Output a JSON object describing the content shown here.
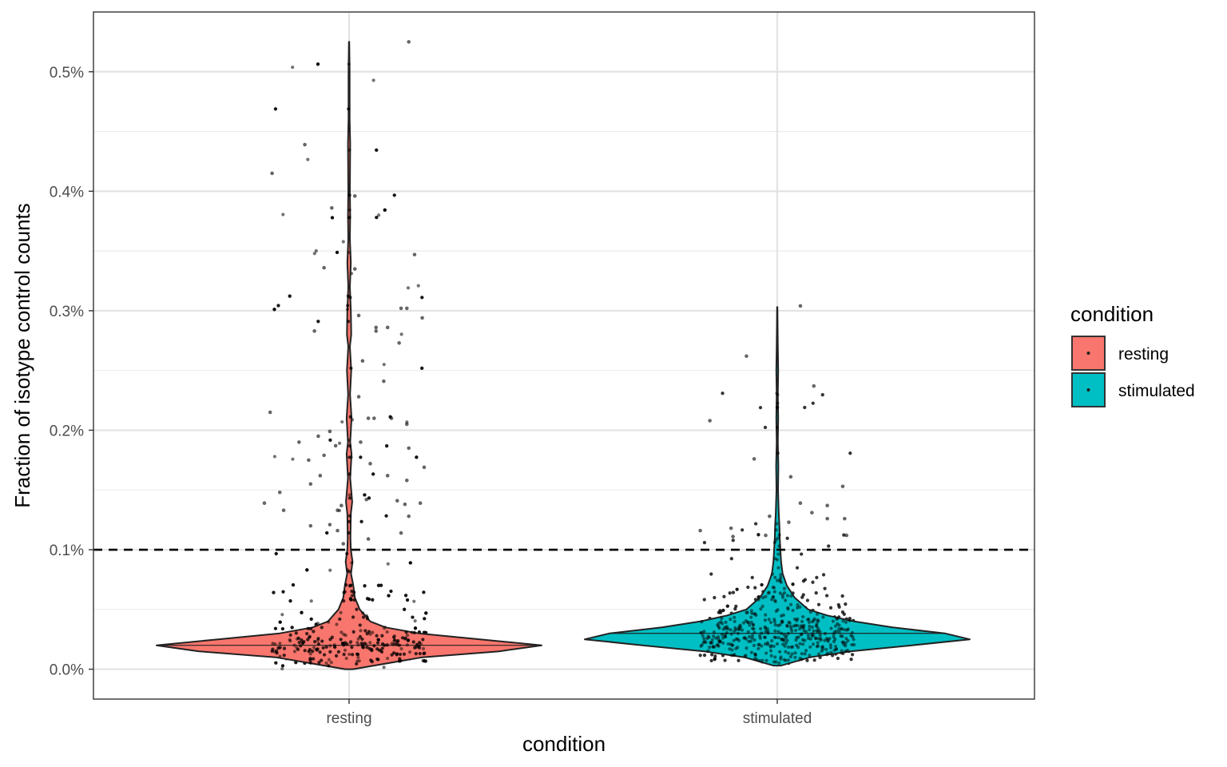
{
  "chart_data": {
    "type": "violin",
    "title": "",
    "xlabel": "condition",
    "ylabel": "Fraction of isotype control counts",
    "categories": [
      "resting",
      "stimulated"
    ],
    "ylim": [
      -0.00025,
      0.0055
    ],
    "yticks": [
      {
        "value": 0.0,
        "label": "0.0%"
      },
      {
        "value": 0.001,
        "label": "0.1%"
      },
      {
        "value": 0.002,
        "label": "0.2%"
      },
      {
        "value": 0.003,
        "label": "0.3%"
      },
      {
        "value": 0.004,
        "label": "0.4%"
      },
      {
        "value": 0.005,
        "label": "0.5%"
      }
    ],
    "y_minor_gridlines": [
      0.0005,
      0.0015,
      0.0025,
      0.0035,
      0.0045
    ],
    "reference_line": {
      "value": 0.001,
      "style": "dashed",
      "color": "#000000"
    },
    "grid": true,
    "theme": "bw",
    "legend": {
      "title": "condition",
      "position": "right",
      "entries": [
        {
          "label": "resting",
          "color": "#F8766D"
        },
        {
          "label": "stimulated",
          "color": "#00BFC4"
        }
      ]
    },
    "series": [
      {
        "name": "resting",
        "color": "#F8766D",
        "n_points": 900,
        "median": 0.0002,
        "min": 0.0,
        "max": 0.00525,
        "violin_profile": [
          [
            0.0,
            0.02
          ],
          [
            0.0001,
            0.38
          ],
          [
            0.00015,
            0.78
          ],
          [
            0.0002,
            1.0
          ],
          [
            0.00025,
            0.68
          ],
          [
            0.0003,
            0.36
          ],
          [
            0.00035,
            0.19
          ],
          [
            0.0004,
            0.11
          ],
          [
            0.0005,
            0.055
          ],
          [
            0.0006,
            0.03
          ],
          [
            0.0007,
            0.022
          ],
          [
            0.0008,
            0.01
          ],
          [
            0.0009,
            0.018
          ],
          [
            0.001,
            0.009
          ],
          [
            0.0011,
            0.007
          ],
          [
            0.0013,
            0.009
          ],
          [
            0.0014,
            0.016
          ],
          [
            0.0016,
            0.006
          ],
          [
            0.0018,
            0.013
          ],
          [
            0.0019,
            0.006
          ],
          [
            0.0021,
            0.013
          ],
          [
            0.0023,
            0.005
          ],
          [
            0.0025,
            0.011
          ],
          [
            0.0027,
            0.004
          ],
          [
            0.0028,
            0.011
          ],
          [
            0.003,
            0.009
          ],
          [
            0.0032,
            0.004
          ],
          [
            0.0034,
            0.009
          ],
          [
            0.0036,
            0.004
          ],
          [
            0.0038,
            0.006
          ],
          [
            0.004,
            0.004
          ],
          [
            0.0042,
            0.005
          ],
          [
            0.0044,
            0.006
          ],
          [
            0.0046,
            0.003
          ],
          [
            0.005,
            0.003
          ],
          [
            0.00525,
            0.001
          ]
        ],
        "outliers": [
          {
            "x": -0.4,
            "y": 0.00415
          },
          {
            "x": -0.23,
            "y": 0.00439
          },
          {
            "x": -0.09,
            "y": 0.00386
          },
          {
            "x": -0.13,
            "y": 0.00336
          },
          {
            "x": -0.18,
            "y": 0.00283
          },
          {
            "x": 0.03,
            "y": 0.00396
          },
          {
            "x": 0.03,
            "y": 0.00335
          },
          {
            "x": 0.05,
            "y": 0.00296
          },
          {
            "x": 0.31,
            "y": 0.00525
          },
          {
            "x": 0.34,
            "y": 0.00347
          },
          {
            "x": 0.38,
            "y": 0.00294
          },
          {
            "x": 0.27,
            "y": 0.00302
          },
          {
            "x": 0.3,
            "y": 0.00302
          },
          {
            "x": 0.26,
            "y": 0.00273
          },
          {
            "x": 0.2,
            "y": 0.00286
          },
          {
            "x": 0.14,
            "y": 0.00286
          },
          {
            "x": 0.14,
            "y": 0.00283
          },
          {
            "x": 0.07,
            "y": 0.00258
          },
          {
            "x": 0.18,
            "y": 0.00241
          },
          {
            "x": 0.05,
            "y": 0.00228
          },
          {
            "x": -0.41,
            "y": 0.00215
          },
          {
            "x": -0.26,
            "y": 0.0019
          },
          {
            "x": -0.16,
            "y": 0.00195
          },
          {
            "x": -0.1,
            "y": 0.00199
          },
          {
            "x": -0.07,
            "y": 0.00187
          },
          {
            "x": 0.1,
            "y": 0.0021
          },
          {
            "x": 0.13,
            "y": 0.0021
          },
          {
            "x": 0.22,
            "y": 0.0021
          },
          {
            "x": 0.3,
            "y": 0.00205
          },
          {
            "x": 0.06,
            "y": 0.0019
          },
          {
            "x": 0.31,
            "y": 0.00185
          },
          {
            "x": 0.39,
            "y": 0.00169
          },
          {
            "x": 0.3,
            "y": 0.00158
          },
          {
            "x": 0.2,
            "y": 0.00162
          },
          {
            "x": -0.21,
            "y": 0.00175
          },
          {
            "x": -0.13,
            "y": 0.00179
          },
          {
            "x": -0.15,
            "y": 0.00162
          },
          {
            "x": -0.2,
            "y": 0.00155
          },
          {
            "x": 0.11,
            "y": 0.00172
          },
          {
            "x": 0.37,
            "y": 0.00139
          },
          {
            "x": 0.25,
            "y": 0.00141
          },
          {
            "x": 0.29,
            "y": 0.00138
          },
          {
            "x": 0.09,
            "y": 0.00142
          },
          {
            "x": -0.36,
            "y": 0.00148
          },
          {
            "x": -0.44,
            "y": 0.00139
          },
          {
            "x": -0.34,
            "y": 0.00133
          },
          {
            "x": -0.06,
            "y": 0.00133
          },
          {
            "x": -0.04,
            "y": 0.00137
          },
          {
            "x": 0.31,
            "y": 0.00128
          },
          {
            "x": -0.1,
            "y": 0.00121
          },
          {
            "x": 0.27,
            "y": 0.00114
          },
          {
            "x": -0.2,
            "y": 0.0012
          },
          {
            "x": -0.06,
            "y": 0.00116
          },
          {
            "x": 0.1,
            "y": 0.00109
          },
          {
            "x": -0.03,
            "y": 0.00105
          }
        ]
      },
      {
        "name": "stimulated",
        "color": "#00BFC4",
        "n_points": 900,
        "median": 0.0003,
        "min": 3e-05,
        "max": 0.00303,
        "violin_profile": [
          [
            3e-05,
            0.02
          ],
          [
            0.0001,
            0.17
          ],
          [
            0.00015,
            0.38
          ],
          [
            0.0002,
            0.7
          ],
          [
            0.00025,
            1.0
          ],
          [
            0.0003,
            0.87
          ],
          [
            0.00035,
            0.6
          ],
          [
            0.0004,
            0.4
          ],
          [
            0.00045,
            0.26
          ],
          [
            0.0005,
            0.16
          ],
          [
            0.0006,
            0.09
          ],
          [
            0.0007,
            0.05
          ],
          [
            0.0008,
            0.028
          ],
          [
            0.0009,
            0.02
          ],
          [
            0.001,
            0.016
          ],
          [
            0.0011,
            0.013
          ],
          [
            0.0012,
            0.011
          ],
          [
            0.0013,
            0.008
          ],
          [
            0.0015,
            0.004
          ],
          [
            0.0017,
            0.006
          ],
          [
            0.0019,
            0.003
          ],
          [
            0.0021,
            0.005
          ],
          [
            0.0023,
            0.003
          ],
          [
            0.0025,
            0.005
          ],
          [
            0.0027,
            0.003
          ],
          [
            0.00303,
            0.001
          ]
        ],
        "outliers": [
          {
            "x": 0.12,
            "y": 0.00304
          },
          {
            "x": -0.16,
            "y": 0.00262
          },
          {
            "x": 0.19,
            "y": 0.00237
          },
          {
            "x": -0.35,
            "y": 0.00208
          },
          {
            "x": -0.12,
            "y": 0.00176
          },
          {
            "x": 0.07,
            "y": 0.00161
          },
          {
            "x": 0.34,
            "y": 0.00153
          },
          {
            "x": 0.12,
            "y": 0.00139
          },
          {
            "x": 0.18,
            "y": 0.00131
          },
          {
            "x": 0.26,
            "y": 0.00137
          },
          {
            "x": 0.06,
            "y": 0.00123
          },
          {
            "x": 0.35,
            "y": 0.00126
          },
          {
            "x": -0.04,
            "y": 0.00128
          },
          {
            "x": 0.26,
            "y": 0.00126
          },
          {
            "x": 0.36,
            "y": 0.00112
          },
          {
            "x": -0.4,
            "y": 0.00116
          },
          {
            "x": -0.24,
            "y": 0.00118
          },
          {
            "x": -0.23,
            "y": 0.00111
          },
          {
            "x": -0.06,
            "y": 0.00112
          }
        ]
      }
    ]
  }
}
